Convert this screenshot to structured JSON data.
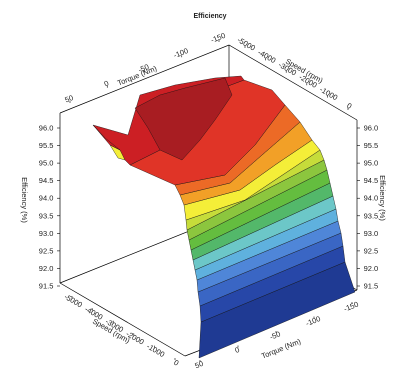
{
  "chart_data": {
    "type": "surface",
    "title": "Efficiency",
    "x_axis": {
      "label": "Torque (Nm)",
      "ticks_back": [
        "-150",
        "-100",
        "-50",
        "0",
        "50"
      ],
      "ticks_front": [
        "-150",
        "-100",
        "-50",
        "0",
        "50"
      ],
      "range": [
        -150,
        50
      ]
    },
    "y_axis": {
      "label": "Speed (rpm)",
      "ticks_back": [
        "-5000",
        "-4000",
        "-3000",
        "-2000",
        "-1000",
        "0"
      ],
      "ticks_front": [
        "-5000",
        "-4000",
        "-3000",
        "-2000",
        "-1000",
        "0"
      ],
      "range": [
        -5000,
        0
      ]
    },
    "z_axis": {
      "label": "Efficiency (%)",
      "ticks": [
        "96.0",
        "95.5",
        "95.0",
        "94.5",
        "94.0",
        "93.5",
        "93.0",
        "92.5",
        "92.0",
        "91.5"
      ],
      "range": [
        91.5,
        96.0
      ]
    },
    "color_bands": [
      {
        "from": 91.5,
        "to": 91.9,
        "color": "#1f3a93"
      },
      {
        "from": 91.9,
        "to": 92.3,
        "color": "#2747a8"
      },
      {
        "from": 92.3,
        "to": 92.6,
        "color": "#3a66c4"
      },
      {
        "from": 92.6,
        "to": 92.9,
        "color": "#4f86d8"
      },
      {
        "from": 92.9,
        "to": 93.1,
        "color": "#5fb1de"
      },
      {
        "from": 93.1,
        "to": 93.3,
        "color": "#6cc7c8"
      },
      {
        "from": 93.3,
        "to": 93.5,
        "color": "#53b86a"
      },
      {
        "from": 93.5,
        "to": 93.8,
        "color": "#64bd3f"
      },
      {
        "from": 93.8,
        "to": 94.1,
        "color": "#8cc63e"
      },
      {
        "from": 94.1,
        "to": 94.4,
        "color": "#c6dc3a"
      },
      {
        "from": 94.4,
        "to": 94.8,
        "color": "#f4ee38"
      },
      {
        "from": 94.8,
        "to": 95.2,
        "color": "#f2a027"
      },
      {
        "from": 95.2,
        "to": 95.6,
        "color": "#ec6a26"
      },
      {
        "from": 95.6,
        "to": 95.9,
        "color": "#e03427"
      },
      {
        "from": 95.9,
        "to": 96.2,
        "color": "#cc1f24"
      },
      {
        "from": 96.2,
        "to": 96.6,
        "color": "#a81d22"
      }
    ]
  }
}
